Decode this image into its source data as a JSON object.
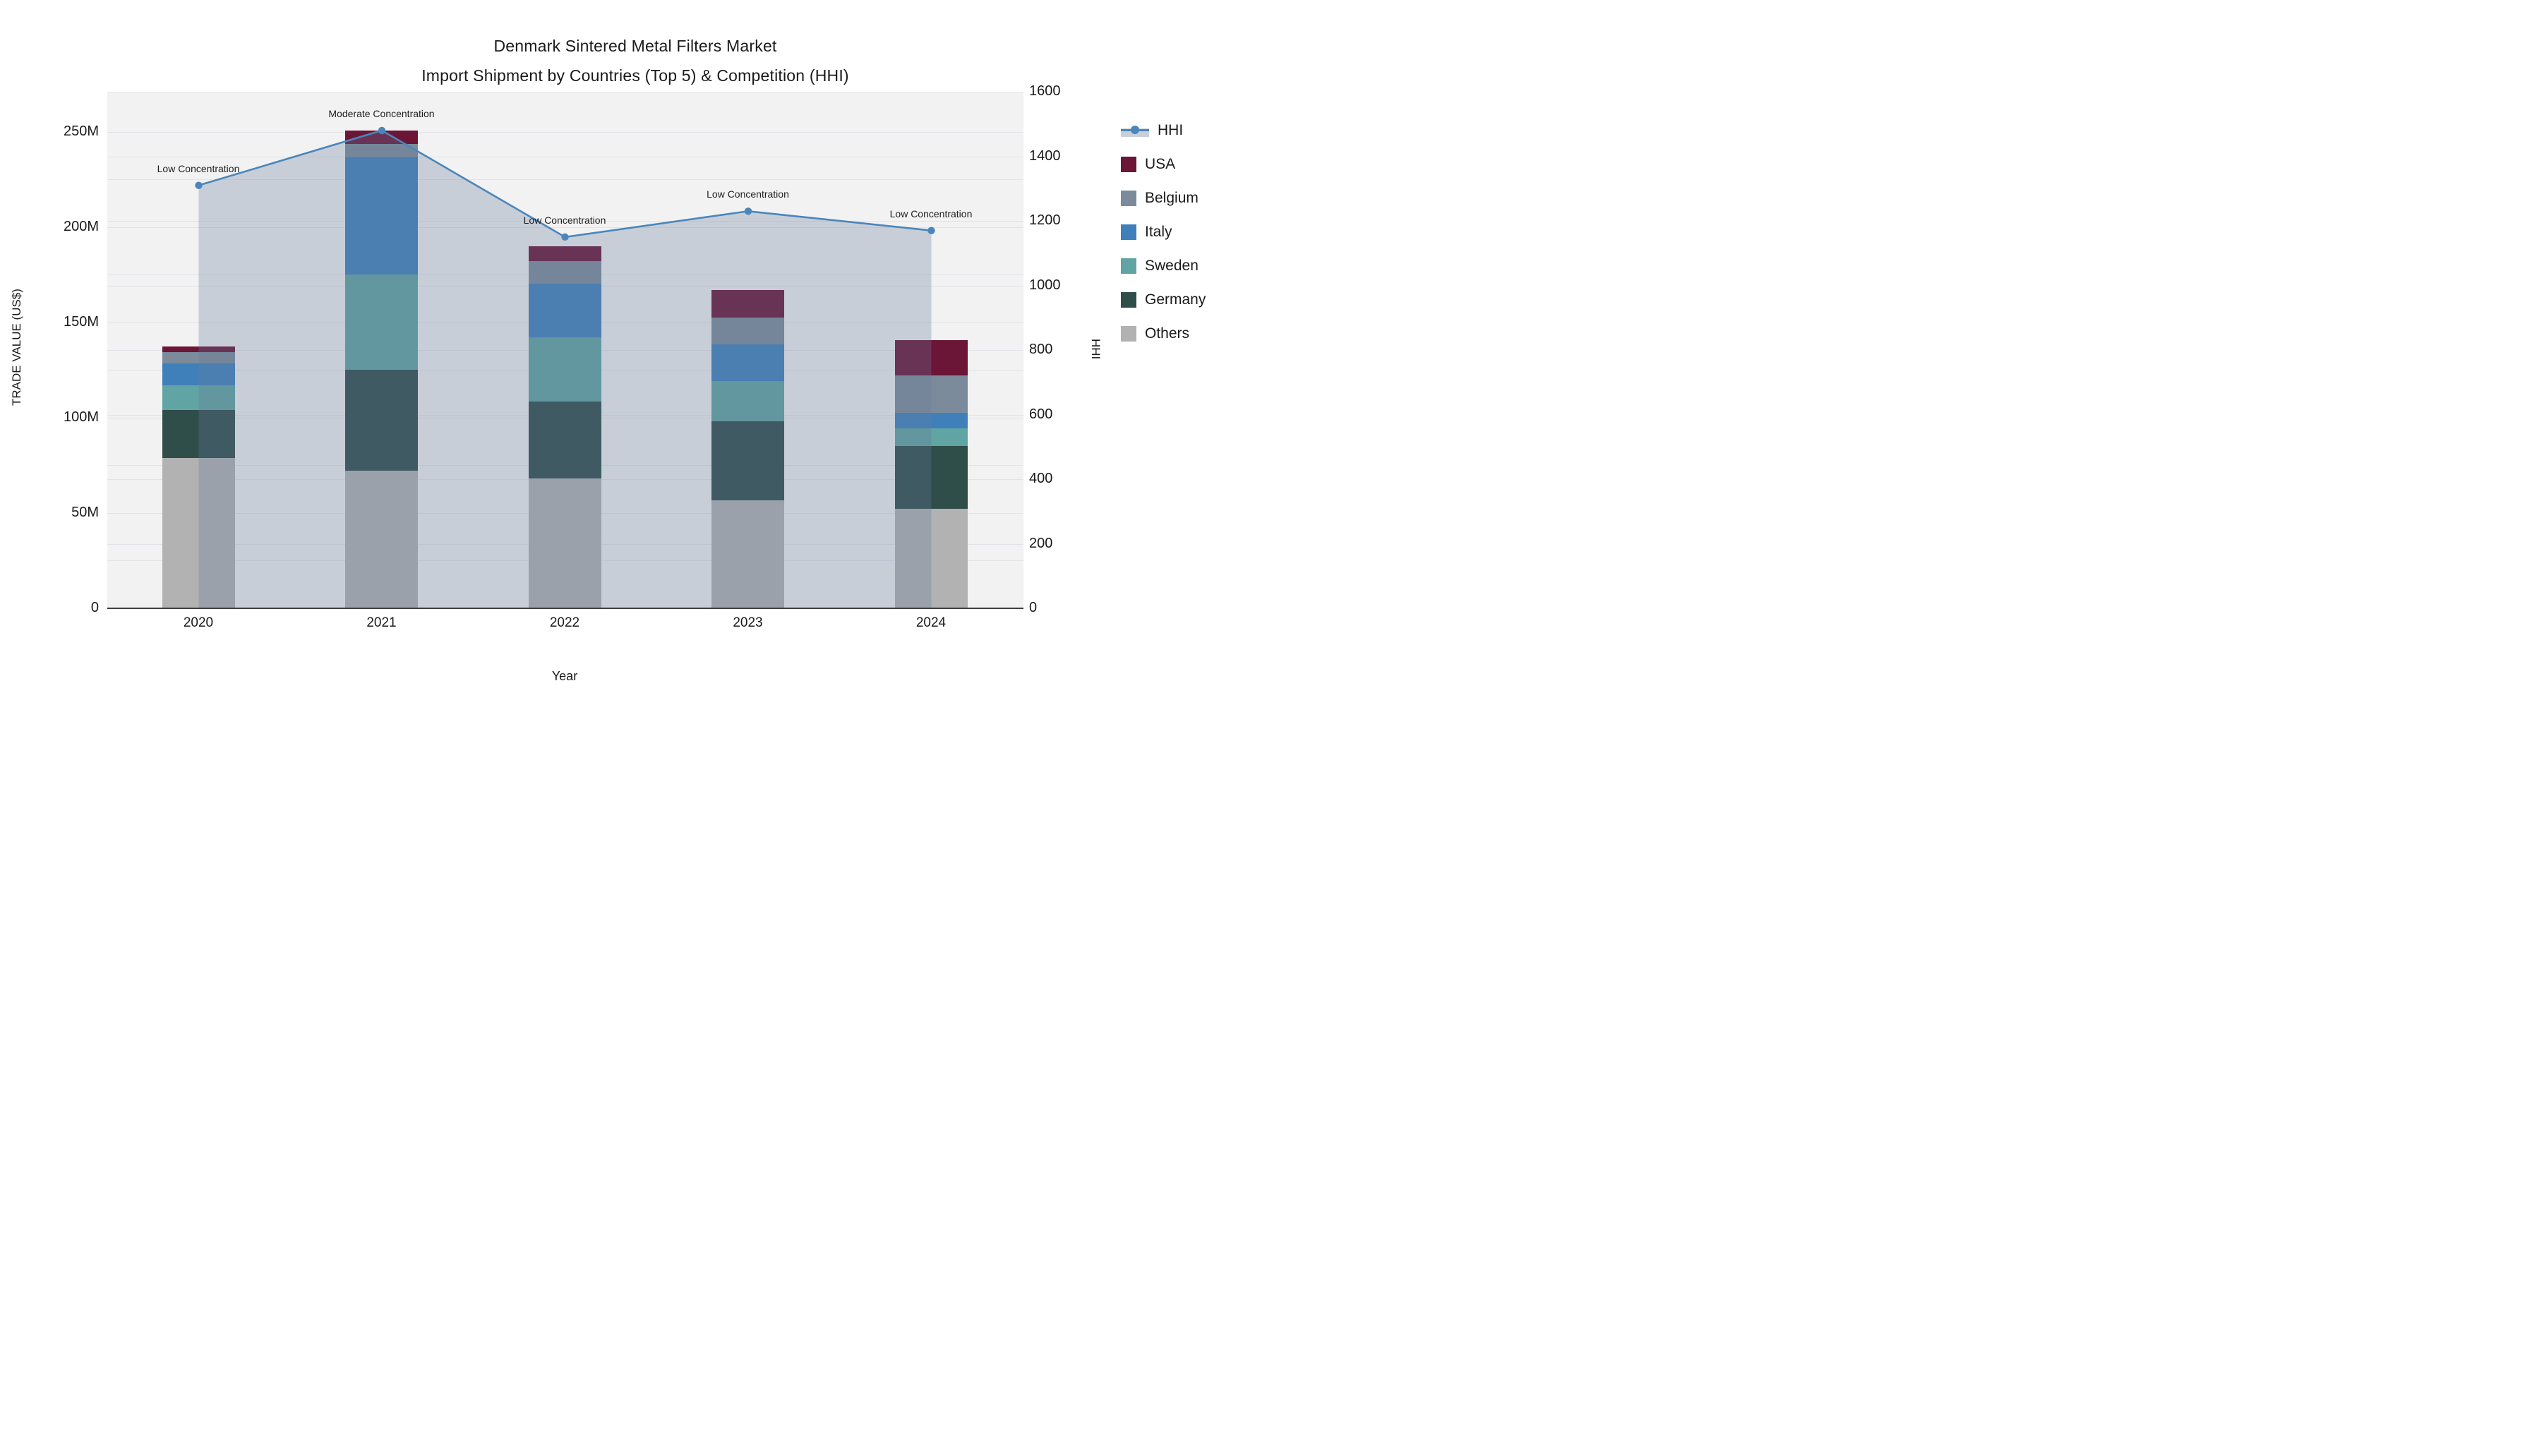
{
  "title": {
    "line1": "Denmark Sintered Metal Filters Market",
    "line2": "Import Shipment by Countries (Top 5) & Competition (HHI)"
  },
  "axes": {
    "y_left_label": "TRADE VALUE (US$)",
    "y_left_ticks": [
      "0",
      "50M",
      "100M",
      "150M",
      "200M",
      "250M"
    ],
    "y_right_label": "HHI",
    "y_right_ticks": [
      "0",
      "200",
      "400",
      "600",
      "800",
      "1000",
      "1200",
      "1400",
      "1600"
    ],
    "x_label": "Year",
    "x_ticks": [
      "2020",
      "2021",
      "2022",
      "2023",
      "2024"
    ]
  },
  "legend": {
    "items": [
      {
        "label": "HHI",
        "type": "line",
        "color": "#4a86ba"
      },
      {
        "label": "USA",
        "type": "box",
        "color": "#6b1537"
      },
      {
        "label": "Belgium",
        "type": "box",
        "color": "#7b8b9b"
      },
      {
        "label": "Italy",
        "type": "box",
        "color": "#4080ba"
      },
      {
        "label": "Sweden",
        "type": "box",
        "color": "#60a4a3"
      },
      {
        "label": "Germany",
        "type": "box",
        "color": "#2f4d49"
      },
      {
        "label": "Others",
        "type": "box",
        "color": "#b2b2b2"
      }
    ]
  },
  "chart_data": {
    "type": "bar",
    "subtype": "stacked-bars-with-line",
    "categories": [
      "2020",
      "2021",
      "2022",
      "2023",
      "2024"
    ],
    "series": [
      {
        "name": "Others",
        "axis": "left",
        "color": "#b2b2b2",
        "values": [
          79.0,
          72.0,
          68.1,
          56.8,
          52.2
        ]
      },
      {
        "name": "Germany",
        "axis": "left",
        "color": "#2f4d49",
        "values": [
          25.0,
          53.1,
          40.5,
          41.4,
          32.9
        ]
      },
      {
        "name": "Sweden",
        "axis": "left",
        "color": "#60a4a3",
        "values": [
          12.8,
          50.1,
          33.7,
          21.0,
          9.3
        ]
      },
      {
        "name": "Italy",
        "axis": "left",
        "color": "#4080ba",
        "values": [
          11.5,
          61.3,
          28.1,
          19.4,
          8.1
        ]
      },
      {
        "name": "Belgium",
        "axis": "left",
        "color": "#7b8b9b",
        "values": [
          6.1,
          7.2,
          11.7,
          13.7,
          19.6
        ]
      },
      {
        "name": "USA",
        "axis": "left",
        "color": "#6b1537",
        "values": [
          2.8,
          6.7,
          7.9,
          14.6,
          18.5
        ]
      }
    ],
    "line_series": {
      "name": "HHI",
      "axis": "right",
      "color": "#4a86ba",
      "band_fill": "rgba(102,124,155,0.30)",
      "values": [
        1310,
        1480,
        1150,
        1230,
        1170
      ]
    },
    "bar_totals_M": [
      137.2,
      250.4,
      190.0,
      166.9,
      140.6
    ],
    "annotations": [
      {
        "year": "2020",
        "text": "Low Concentration"
      },
      {
        "year": "2021",
        "text": "Moderate Concentration"
      },
      {
        "year": "2022",
        "text": "Low Concentration"
      },
      {
        "year": "2023",
        "text": "Low Concentration"
      },
      {
        "year": "2024",
        "text": "Low Concentration"
      }
    ],
    "title": "Denmark Sintered Metal Filters Market — Import Shipment by Countries (Top 5) & Competition (HHI)",
    "xlabel": "Year",
    "ylabel_left": "TRADE VALUE (US$)",
    "ylabel_right": "HHI",
    "ylim_left_M": [
      0,
      250
    ],
    "ylim_right": [
      0,
      1600
    ],
    "grid": true,
    "legend_position": "right",
    "plot_bg": "#f2f2f3"
  }
}
